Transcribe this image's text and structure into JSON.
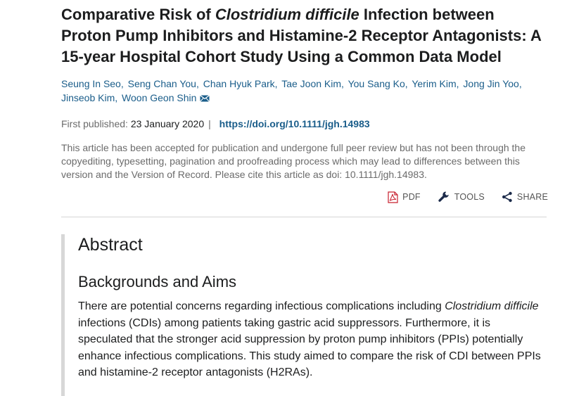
{
  "article": {
    "title_part1": "Comparative Risk of ",
    "title_italic": "Clostridium difficile",
    "title_part2": " Infection between Proton Pump Inhibitors and Histamine-2 Receptor Antagonists: A 15-year Hospital Cohort Study Using a Common Data Model",
    "authors": [
      "Seung In Seo,",
      "Seng Chan You,",
      "Chan Hyuk Park,",
      "Tae Joon Kim,",
      "You Sang Ko,",
      "Yerim Kim,",
      "Jong Jin Yoo,",
      "Jinseob Kim,",
      "Woon Geon Shin"
    ],
    "first_published_label": "First published:",
    "first_published_date": "23 January 2020",
    "doi_link": "https://doi.org/10.1111/jgh.14983",
    "notice": "This article has been accepted for publication and undergone full peer review but has not been through the copyediting, typesetting, pagination and proofreading process which may lead to differences between this version and the Version of Record. Please cite this article as doi: 10.1111/jgh.14983."
  },
  "toolbar": {
    "pdf_label": "PDF",
    "tools_label": "TOOLS",
    "share_label": "SHARE"
  },
  "abstract": {
    "heading": "Abstract",
    "section_heading": "Backgrounds and Aims",
    "text_part1": "There are potential concerns regarding infectious complications including ",
    "text_italic": "Clostridium difficile",
    "text_part2": " infections (CDIs) among patients taking gastric acid suppressors. Furthermore, it is speculated that the stronger acid suppression by proton pump inhibitors (PPIs) potentially enhance infectious complications. This study aimed to compare the risk of CDI between PPIs and histamine-2 receptor antagonists (H2RAs)."
  },
  "colors": {
    "link": "#1a5d8a",
    "pdf_red": "#c8202f",
    "muted_text": "#6b6b6b",
    "abstract_border": "#d7d7d7"
  },
  "icons": {
    "mail": "envelope-icon",
    "pdf": "pdf-file-icon",
    "tools": "wrench-icon",
    "share": "share-icon"
  }
}
